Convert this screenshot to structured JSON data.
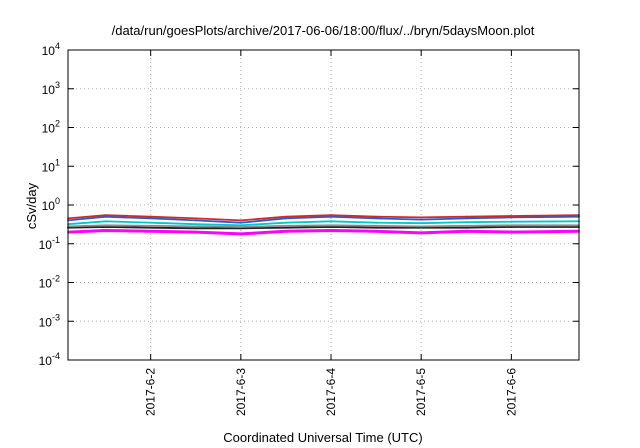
{
  "chart_data": {
    "type": "line",
    "title": "/data/run/goesPlots/archive/2017-06-06/18:00/flux/../bryn/5daysMoon.plot",
    "xlabel": "Coordinated Universal Time (UTC)",
    "ylabel": "cSv/day",
    "yscale": "log",
    "ylim": [
      0.0001,
      10000
    ],
    "xlim": [
      "2017-06-01 02:00",
      "2017-06-06 18:00"
    ],
    "grid": true,
    "legend": "none",
    "x_ticks": [
      "2017-6-2",
      "2017-6-3",
      "2017-6-4",
      "2017-6-5",
      "2017-6-6"
    ],
    "y_ticks": [
      {
        "base": "10",
        "exp": "-4"
      },
      {
        "base": "10",
        "exp": "-3"
      },
      {
        "base": "10",
        "exp": "-2"
      },
      {
        "base": "10",
        "exp": "-1"
      },
      {
        "base": "10",
        "exp": "0"
      },
      {
        "base": "10",
        "exp": "1"
      },
      {
        "base": "10",
        "exp": "2"
      },
      {
        "base": "10",
        "exp": "3"
      },
      {
        "base": "10",
        "exp": "4"
      }
    ],
    "x": [
      "2017-06-01 02:00",
      "2017-06-01 12:00",
      "2017-06-02 00:00",
      "2017-06-02 12:00",
      "2017-06-03 00:00",
      "2017-06-03 12:00",
      "2017-06-04 00:00",
      "2017-06-04 12:00",
      "2017-06-05 00:00",
      "2017-06-05 12:00",
      "2017-06-06 00:00",
      "2017-06-06 18:00"
    ],
    "series": [
      {
        "color": "#d62728",
        "values": [
          0.45,
          0.55,
          0.5,
          0.45,
          0.4,
          0.5,
          0.55,
          0.5,
          0.48,
          0.5,
          0.52,
          0.55
        ]
      },
      {
        "color": "#1f5fd6",
        "values": [
          0.4,
          0.5,
          0.45,
          0.4,
          0.35,
          0.45,
          0.5,
          0.45,
          0.42,
          0.45,
          0.48,
          0.5
        ]
      },
      {
        "color": "#00c8c8",
        "values": [
          0.32,
          0.38,
          0.35,
          0.32,
          0.3,
          0.35,
          0.38,
          0.35,
          0.34,
          0.36,
          0.37,
          0.38
        ]
      },
      {
        "color": "#8a8a8a",
        "values": [
          0.28,
          0.3,
          0.29,
          0.28,
          0.27,
          0.29,
          0.3,
          0.29,
          0.28,
          0.29,
          0.3,
          0.3
        ]
      },
      {
        "color": "#222222",
        "values": [
          0.26,
          0.27,
          0.26,
          0.25,
          0.25,
          0.26,
          0.27,
          0.26,
          0.26,
          0.26,
          0.27,
          0.27
        ]
      },
      {
        "color": "#ff00ff",
        "values": [
          0.2,
          0.22,
          0.21,
          0.2,
          0.18,
          0.21,
          0.22,
          0.21,
          0.19,
          0.21,
          0.2,
          0.21
        ]
      }
    ]
  }
}
